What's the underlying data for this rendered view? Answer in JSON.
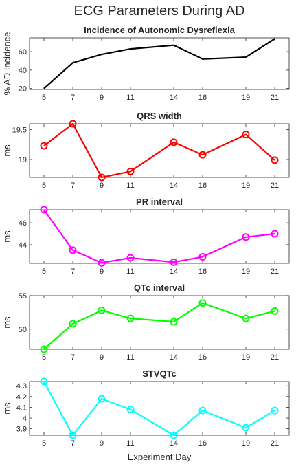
{
  "figure": {
    "suptitle": "ECG Parameters During AD",
    "xlabel": "Experiment Day"
  },
  "chart_data": [
    {
      "type": "line",
      "title": "Incidence of Autonomic Dysreflexia",
      "ylabel": "% AD Incidence",
      "x": [
        5,
        7,
        9,
        11,
        14,
        16,
        19,
        21
      ],
      "xticks": [
        5,
        7,
        9,
        11,
        14,
        16,
        19,
        21
      ],
      "xlim": [
        4,
        22
      ],
      "ylim": [
        19,
        75
      ],
      "yticks": [
        20,
        40,
        60
      ],
      "series": [
        {
          "values": [
            20,
            48,
            57,
            63,
            67,
            52,
            54,
            74
          ],
          "color": "#000000"
        }
      ],
      "markers": false
    },
    {
      "type": "line",
      "title": "QRS width",
      "ylabel": "ms",
      "x": [
        5,
        7,
        9,
        11,
        14,
        16,
        19,
        21
      ],
      "xticks": [
        5,
        7,
        9,
        11,
        14,
        16,
        19,
        21
      ],
      "xlim": [
        4,
        22
      ],
      "ylim": [
        18.7,
        19.6
      ],
      "yticks": [
        19,
        19.5
      ],
      "series": [
        {
          "values": [
            19.23,
            19.6,
            18.7,
            18.8,
            19.29,
            19.08,
            19.42,
            18.99
          ],
          "color": "#ff0000"
        }
      ],
      "markers": true
    },
    {
      "type": "line",
      "title": "PR interval",
      "ylabel": "ms",
      "x": [
        5,
        7,
        9,
        11,
        14,
        16,
        19,
        21
      ],
      "xticks": [
        5,
        7,
        9,
        11,
        14,
        16,
        19,
        21
      ],
      "xlim": [
        4,
        22
      ],
      "ylim": [
        42.3,
        47.2
      ],
      "yticks": [
        44,
        46
      ],
      "series": [
        {
          "values": [
            47.2,
            43.5,
            42.35,
            42.8,
            42.4,
            42.9,
            44.7,
            45.0
          ],
          "color": "#ff00ff"
        }
      ],
      "markers": true
    },
    {
      "type": "line",
      "title": "QTc interval",
      "ylabel": "ms",
      "x": [
        5,
        7,
        9,
        11,
        14,
        16,
        19,
        21
      ],
      "xticks": [
        5,
        7,
        9,
        11,
        14,
        16,
        19,
        21
      ],
      "xlim": [
        4,
        22
      ],
      "ylim": [
        47.0,
        55.0
      ],
      "yticks": [
        50,
        55
      ],
      "series": [
        {
          "values": [
            47.0,
            50.8,
            52.8,
            51.6,
            51.1,
            53.9,
            51.6,
            52.7
          ],
          "color": "#00ff00"
        }
      ],
      "markers": true
    },
    {
      "type": "line",
      "title": "STVQTc",
      "ylabel": "ms",
      "x": [
        5,
        7,
        9,
        11,
        14,
        16,
        19,
        21
      ],
      "xticks": [
        5,
        7,
        9,
        11,
        14,
        16,
        19,
        21
      ],
      "xlim": [
        4,
        22
      ],
      "ylim": [
        3.84,
        4.34
      ],
      "yticks": [
        3.9,
        4,
        4.1,
        4.2,
        4.3
      ],
      "series": [
        {
          "values": [
            4.34,
            3.84,
            4.18,
            4.08,
            3.84,
            4.07,
            3.91,
            4.07
          ],
          "color": "#00ffff"
        }
      ],
      "markers": true
    }
  ]
}
